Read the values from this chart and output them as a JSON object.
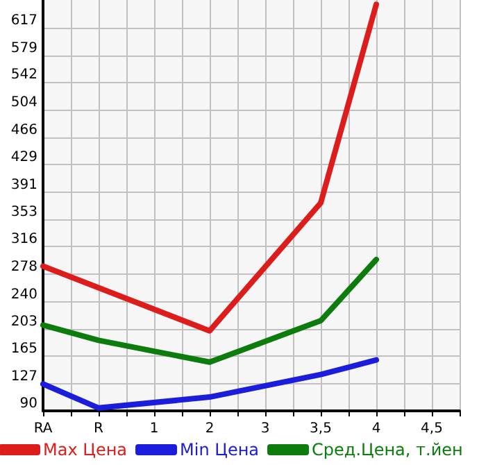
{
  "chart_data": {
    "type": "line",
    "categories": [
      "RA",
      "R",
      "1",
      "2",
      "3",
      "3,5",
      "4",
      "4,5"
    ],
    "series": [
      {
        "name": "Max Цена",
        "color": "#dd1c1c",
        "values": [
          289,
          null,
          null,
          200,
          null,
          376,
          649,
          null
        ]
      },
      {
        "name": "Min Цена",
        "color": "#1c1cdd",
        "values": [
          127,
          94,
          null,
          109,
          null,
          140,
          160,
          null
        ]
      },
      {
        "name": "Сред.Цена, т.йен",
        "color": "#0c7c0c",
        "values": [
          208,
          187,
          null,
          157,
          null,
          214,
          298,
          null
        ]
      }
    ],
    "ylim": [
      90,
      655
    ],
    "yticks": [
      90,
      127,
      165,
      203,
      240,
      278,
      316,
      353,
      391,
      429,
      466,
      504,
      542,
      579,
      617
    ],
    "grid": true,
    "legend": "bottom",
    "marker": "none",
    "line_style": "solid"
  }
}
